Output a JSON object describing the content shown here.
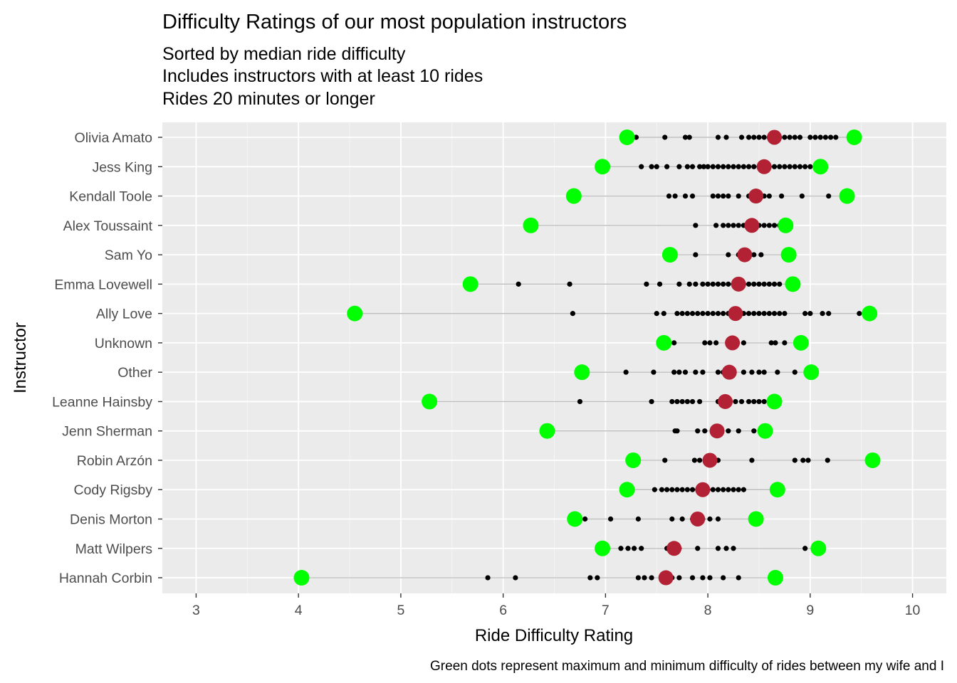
{
  "chart_data": {
    "type": "scatter",
    "title": "Difficulty Ratings of our most population instructors",
    "subtitle": [
      "Sorted by median ride difficulty",
      "Includes instructors with at least 10 rides",
      "Rides 20 minutes or longer"
    ],
    "xlabel": "Ride Difficulty Rating",
    "ylabel": "Instructor",
    "caption": "Green dots represent maximum and minimum difficulty of rides between my wife and I",
    "xlim": [
      2.67,
      10.33
    ],
    "xticks": [
      3,
      4,
      5,
      6,
      7,
      8,
      9,
      10
    ],
    "grid": true,
    "legend": "none",
    "colors": {
      "panel": "#ebebeb",
      "grid_major": "#ffffff",
      "range_line": "#bdbdbd",
      "ride": "#000000",
      "median": "#b22234",
      "extreme": "#00ff00"
    },
    "instructors": [
      {
        "name": "Olivia Amato",
        "min": 7.21,
        "max": 9.43,
        "median": 8.65,
        "rides": [
          7.3,
          7.58,
          7.78,
          7.82,
          8.1,
          8.18,
          8.33,
          8.4,
          8.45,
          8.5,
          8.55,
          8.6,
          8.7,
          8.75,
          8.8,
          8.85,
          8.9,
          9.0,
          9.05,
          9.1,
          9.15,
          9.2,
          9.25
        ]
      },
      {
        "name": "Jess King",
        "min": 6.97,
        "max": 9.1,
        "median": 8.55,
        "rides": [
          7.35,
          7.45,
          7.5,
          7.6,
          7.72,
          7.8,
          7.85,
          7.92,
          7.96,
          8.0,
          8.05,
          8.1,
          8.15,
          8.2,
          8.25,
          8.3,
          8.35,
          8.4,
          8.45,
          8.5,
          8.6,
          8.65,
          8.7,
          8.75,
          8.8,
          8.85,
          8.9,
          8.95,
          9.0,
          9.05
        ]
      },
      {
        "name": "Kendall Toole",
        "min": 6.69,
        "max": 9.36,
        "median": 8.47,
        "rides": [
          7.62,
          7.68,
          7.78,
          7.85,
          8.05,
          8.1,
          8.15,
          8.2,
          8.3,
          8.4,
          8.5,
          8.55,
          8.6,
          8.72,
          8.92,
          9.18
        ]
      },
      {
        "name": "Alex Toussaint",
        "min": 6.27,
        "max": 8.76,
        "median": 8.43,
        "rides": [
          7.88,
          8.08,
          8.15,
          8.2,
          8.25,
          8.3,
          8.35,
          8.4,
          8.5,
          8.55,
          8.6,
          8.65,
          8.7
        ]
      },
      {
        "name": "Sam Yo",
        "min": 7.63,
        "max": 8.79,
        "median": 8.36,
        "rides": [
          7.88,
          8.2,
          8.3,
          8.45,
          8.52
        ]
      },
      {
        "name": "Emma Lovewell",
        "min": 5.68,
        "max": 8.83,
        "median": 8.3,
        "rides": [
          6.15,
          6.65,
          7.4,
          7.53,
          7.72,
          7.82,
          7.88,
          7.95,
          8.0,
          8.05,
          8.1,
          8.15,
          8.2,
          8.25,
          8.35,
          8.4,
          8.45,
          8.5,
          8.55,
          8.6,
          8.65,
          8.7
        ]
      },
      {
        "name": "Ally Love",
        "min": 4.55,
        "max": 9.58,
        "median": 8.27,
        "rides": [
          6.68,
          7.5,
          7.57,
          7.7,
          7.75,
          7.8,
          7.85,
          7.9,
          7.95,
          8.0,
          8.05,
          8.1,
          8.15,
          8.2,
          8.35,
          8.4,
          8.45,
          8.5,
          8.55,
          8.6,
          8.65,
          8.7,
          8.75,
          8.95,
          9.0,
          9.12,
          9.18,
          9.48
        ]
      },
      {
        "name": "Unknown",
        "min": 7.57,
        "max": 8.91,
        "median": 8.24,
        "rides": [
          7.67,
          7.97,
          8.02,
          8.08,
          8.35,
          8.62,
          8.66,
          8.75
        ]
      },
      {
        "name": "Other",
        "min": 6.77,
        "max": 9.01,
        "median": 8.21,
        "rides": [
          7.2,
          7.47,
          7.67,
          7.72,
          7.78,
          7.88,
          7.95,
          8.1,
          8.15,
          8.35,
          8.43,
          8.5,
          8.55,
          8.68,
          8.85
        ]
      },
      {
        "name": "Leanne Hainsby",
        "min": 5.28,
        "max": 8.65,
        "median": 8.17,
        "rides": [
          6.75,
          7.45,
          7.65,
          7.7,
          7.75,
          7.8,
          7.85,
          7.92,
          8.1,
          8.27,
          8.33,
          8.4,
          8.45,
          8.5,
          8.55
        ]
      },
      {
        "name": "Jenn Sherman",
        "min": 6.43,
        "max": 8.56,
        "median": 8.09,
        "rides": [
          7.68,
          7.7,
          7.9,
          7.97,
          8.2,
          8.3,
          8.45
        ]
      },
      {
        "name": "Robin Arzón",
        "min": 7.27,
        "max": 9.61,
        "median": 8.02,
        "rides": [
          7.58,
          7.87,
          7.92,
          7.98,
          8.1,
          8.43,
          8.85,
          8.93,
          8.98,
          9.17
        ]
      },
      {
        "name": "Cody Rigsby",
        "min": 7.21,
        "max": 8.68,
        "median": 7.95,
        "rides": [
          7.48,
          7.55,
          7.6,
          7.65,
          7.7,
          7.75,
          7.8,
          7.85,
          7.9,
          8.0,
          8.05,
          8.1,
          8.15,
          8.2,
          8.25,
          8.3,
          8.35
        ]
      },
      {
        "name": "Denis Morton",
        "min": 6.7,
        "max": 8.47,
        "median": 7.9,
        "rides": [
          6.8,
          7.05,
          7.32,
          7.65,
          7.75,
          7.85,
          7.95,
          8.02,
          8.1
        ]
      },
      {
        "name": "Matt Wilpers",
        "min": 6.97,
        "max": 9.08,
        "median": 7.67,
        "rides": [
          7.15,
          7.22,
          7.28,
          7.35,
          7.6,
          7.72,
          7.9,
          8.1,
          8.18,
          8.25,
          8.95
        ]
      },
      {
        "name": "Hannah Corbin",
        "min": 4.03,
        "max": 8.66,
        "median": 7.59,
        "rides": [
          5.85,
          6.12,
          6.85,
          6.92,
          7.32,
          7.38,
          7.45,
          7.55,
          7.65,
          7.72,
          7.85,
          7.95,
          8.02,
          8.15,
          8.3
        ]
      }
    ]
  }
}
